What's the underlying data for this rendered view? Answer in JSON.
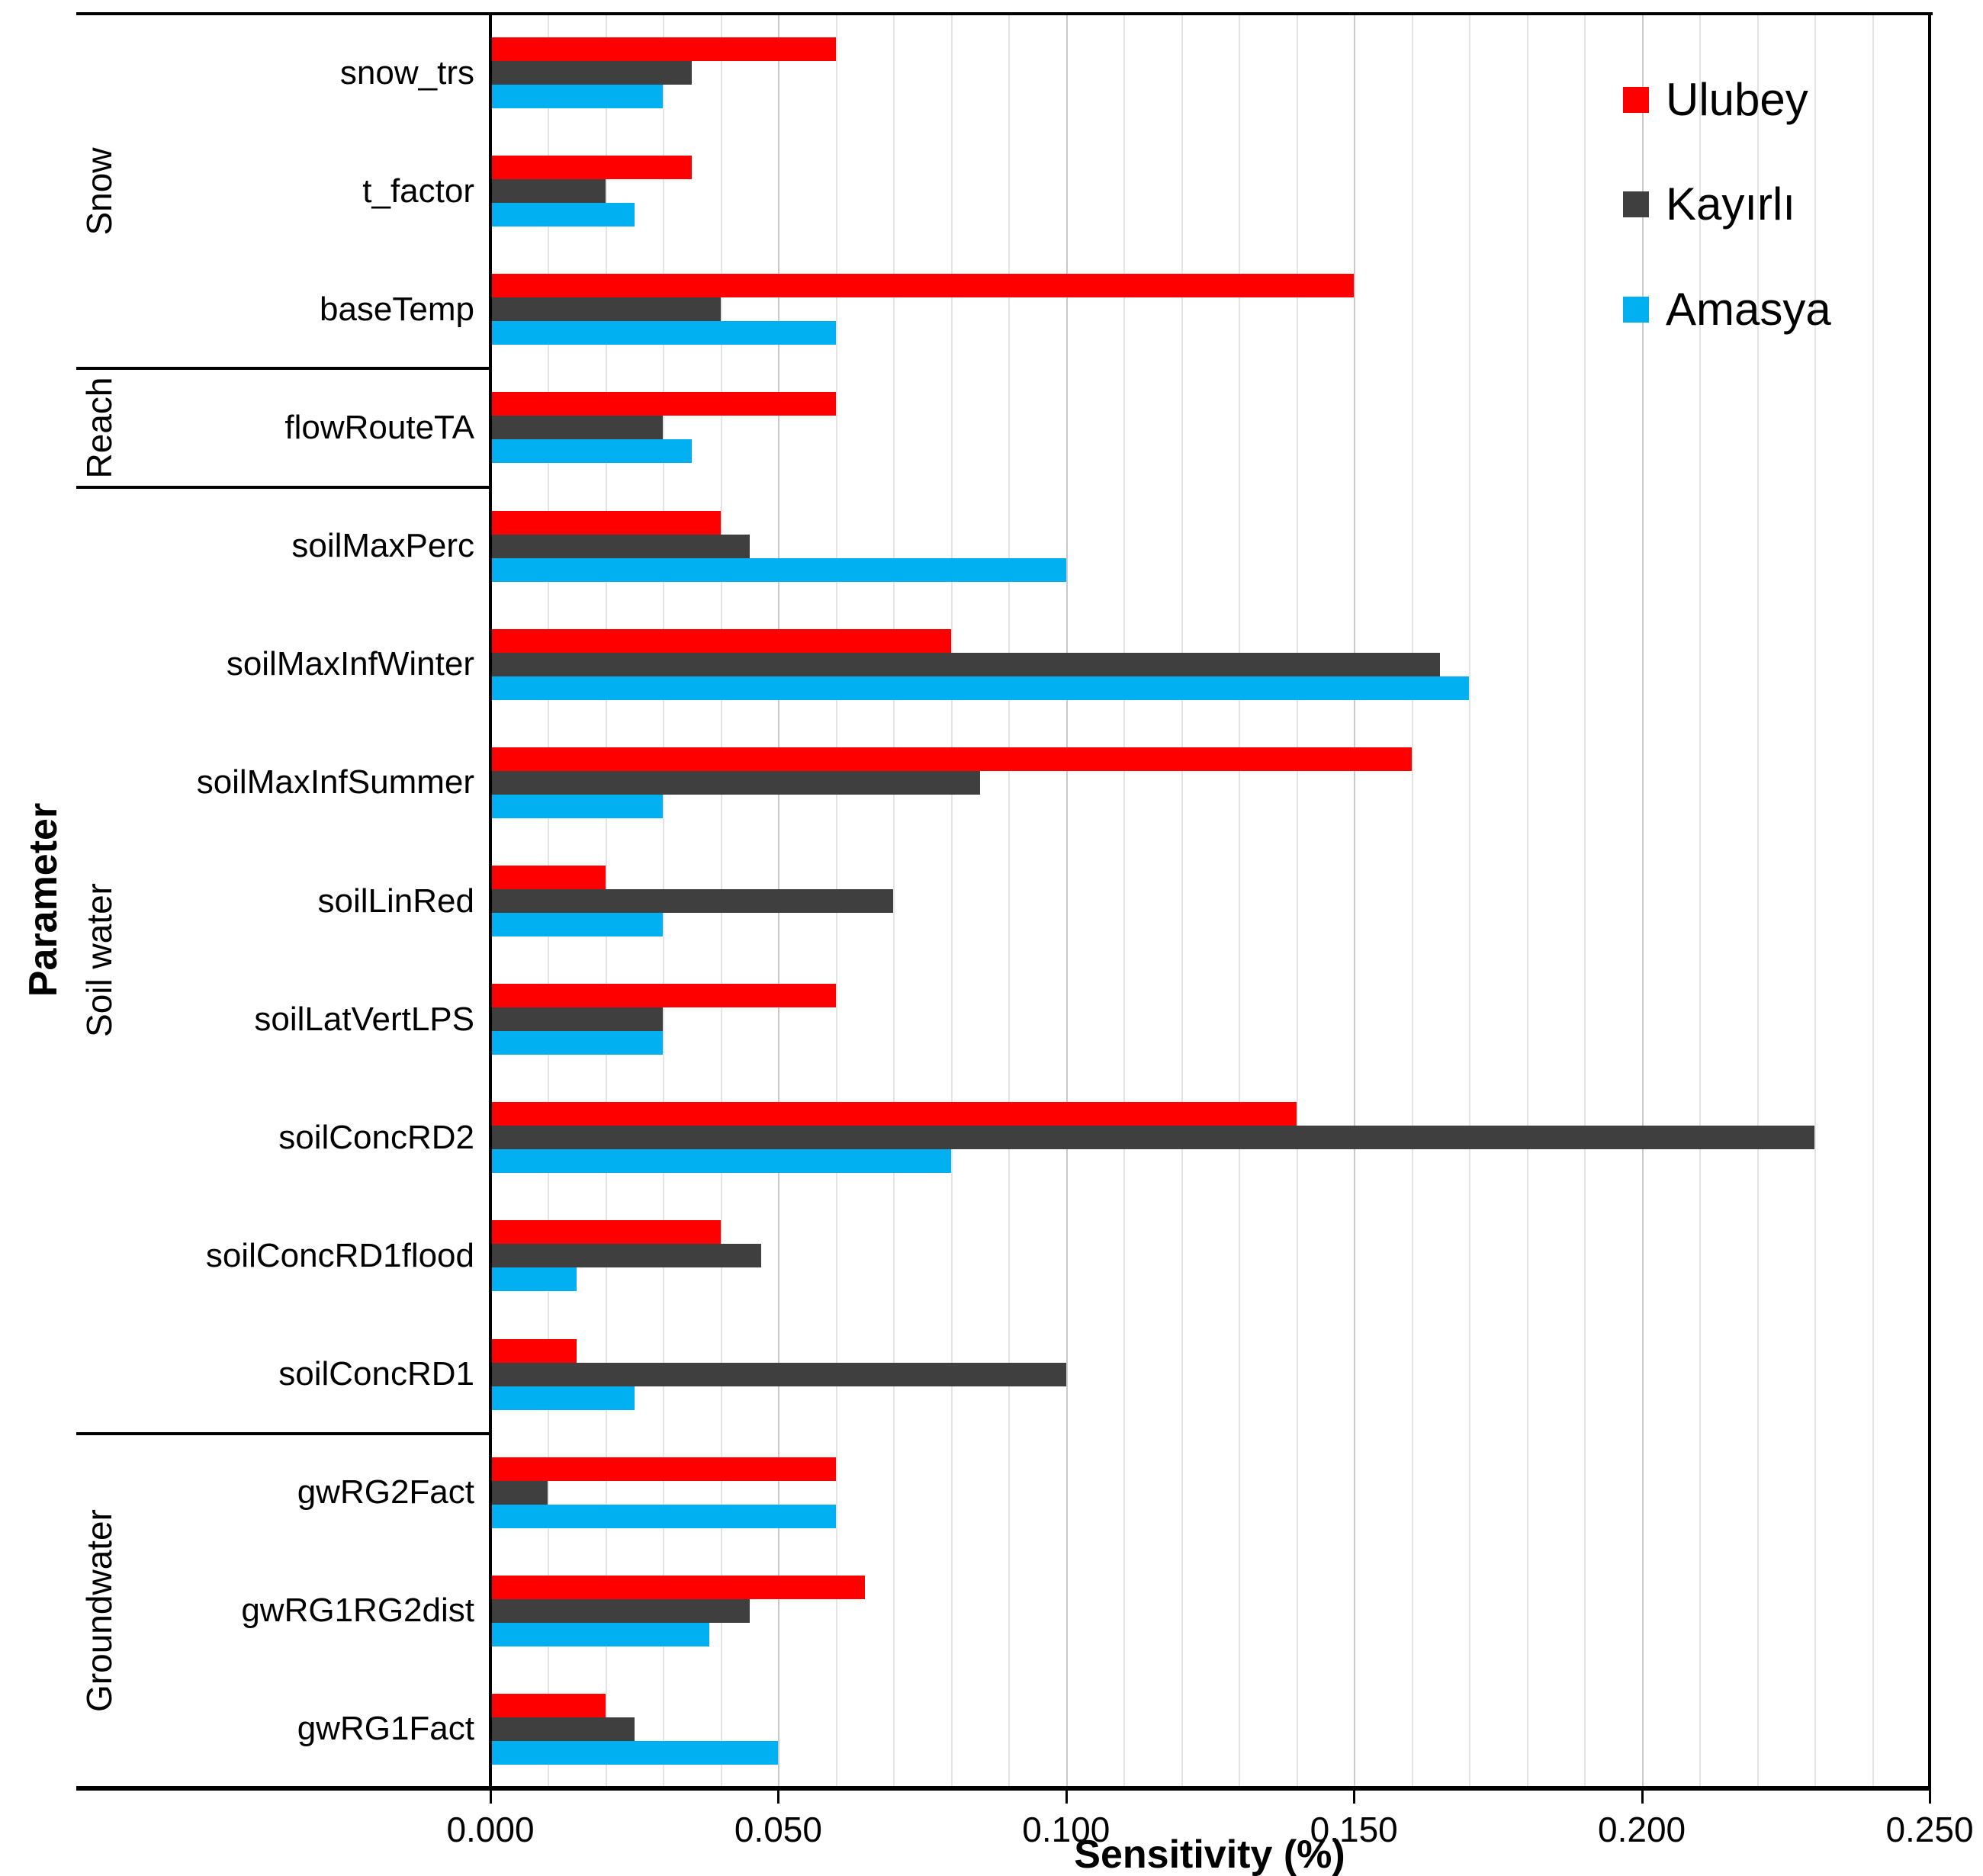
{
  "figure": {
    "x_axis_title": "Sensitivity (%)",
    "y_axis_title": "Parameter"
  },
  "chart_data": {
    "type": "bar",
    "orientation": "horizontal",
    "title": "",
    "xlabel": "Sensitivity (%)",
    "ylabel": "Parameter",
    "x_axis": {
      "min": 0,
      "max": 0.25,
      "major_step": 0.05,
      "minor_step": 0.01,
      "tick_labels": [
        "0.000",
        "0.050",
        "0.100",
        "0.150",
        "0.200",
        "0.250"
      ]
    },
    "grid": {
      "minor_color": "#E4E4E4",
      "major_color": "#C9C9C9",
      "minor_on": true,
      "major_on": true
    },
    "legend": {
      "position": "top-right",
      "entries": [
        "Ulubey",
        "Kayırlı",
        "Amasya"
      ]
    },
    "series": [
      {
        "name": "Ulubey",
        "color": "#FF0000"
      },
      {
        "name": "Kayırlı",
        "color": "#3F3F3F"
      },
      {
        "name": "Amasya",
        "color": "#00B0F0"
      }
    ],
    "groups": [
      {
        "name": "Snow",
        "parameters": [
          {
            "name": "snow_trs",
            "values": [
              0.06,
              0.035,
              0.03
            ]
          },
          {
            "name": "t_factor",
            "values": [
              0.035,
              0.02,
              0.025
            ]
          },
          {
            "name": "baseTemp",
            "values": [
              0.15,
              0.04,
              0.06
            ]
          }
        ]
      },
      {
        "name": "Reach",
        "parameters": [
          {
            "name": "flowRouteTA",
            "values": [
              0.06,
              0.03,
              0.035
            ]
          }
        ]
      },
      {
        "name": "Soil water",
        "parameters": [
          {
            "name": "soilMaxPerc",
            "values": [
              0.04,
              0.045,
              0.1
            ]
          },
          {
            "name": "soilMaxInfWinter",
            "values": [
              0.08,
              0.165,
              0.17
            ]
          },
          {
            "name": "soilMaxInfSummer",
            "values": [
              0.16,
              0.085,
              0.03
            ]
          },
          {
            "name": "soilLinRed",
            "values": [
              0.02,
              0.07,
              0.03
            ]
          },
          {
            "name": "soilLatVertLPS",
            "values": [
              0.06,
              0.03,
              0.03
            ]
          },
          {
            "name": "soilConcRD2",
            "values": [
              0.14,
              0.23,
              0.08
            ]
          },
          {
            "name": "soilConcRD1flood",
            "values": [
              0.04,
              0.047,
              0.015
            ]
          },
          {
            "name": "soilConcRD1",
            "values": [
              0.015,
              0.1,
              0.025
            ]
          }
        ]
      },
      {
        "name": "Groundwater",
        "parameters": [
          {
            "name": "gwRG2Fact",
            "values": [
              0.06,
              0.01,
              0.06
            ]
          },
          {
            "name": "gwRG1RG2dist",
            "values": [
              0.065,
              0.045,
              0.038
            ]
          },
          {
            "name": "gwRG1Fact",
            "values": [
              0.02,
              0.025,
              0.05
            ]
          }
        ]
      }
    ]
  }
}
